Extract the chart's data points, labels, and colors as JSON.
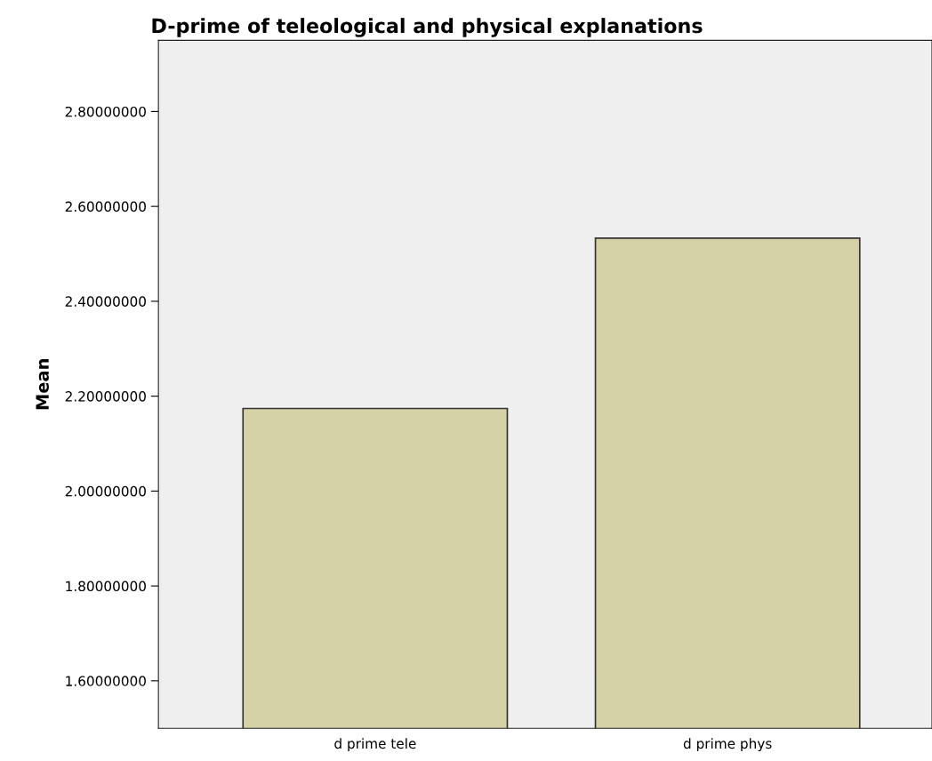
{
  "chart_data": {
    "type": "bar",
    "title": "D-prime of teleological and physical explanations",
    "ylabel": "Mean",
    "categories": [
      "d prime tele",
      "d prime phys"
    ],
    "values": [
      2.174,
      2.533
    ],
    "color": "#d6d2a8",
    "ylim": [
      1.5,
      2.95
    ],
    "yticks": [
      {
        "value": 1.6,
        "label": "1.60000000"
      },
      {
        "value": 1.8,
        "label": "1.80000000"
      },
      {
        "value": 2.0,
        "label": "2.00000000"
      },
      {
        "value": 2.2,
        "label": "2.20000000"
      },
      {
        "value": 2.4,
        "label": "2.40000000"
      },
      {
        "value": 2.6,
        "label": "2.60000000"
      },
      {
        "value": 2.8,
        "label": "2.80000000"
      }
    ],
    "grid": false
  }
}
